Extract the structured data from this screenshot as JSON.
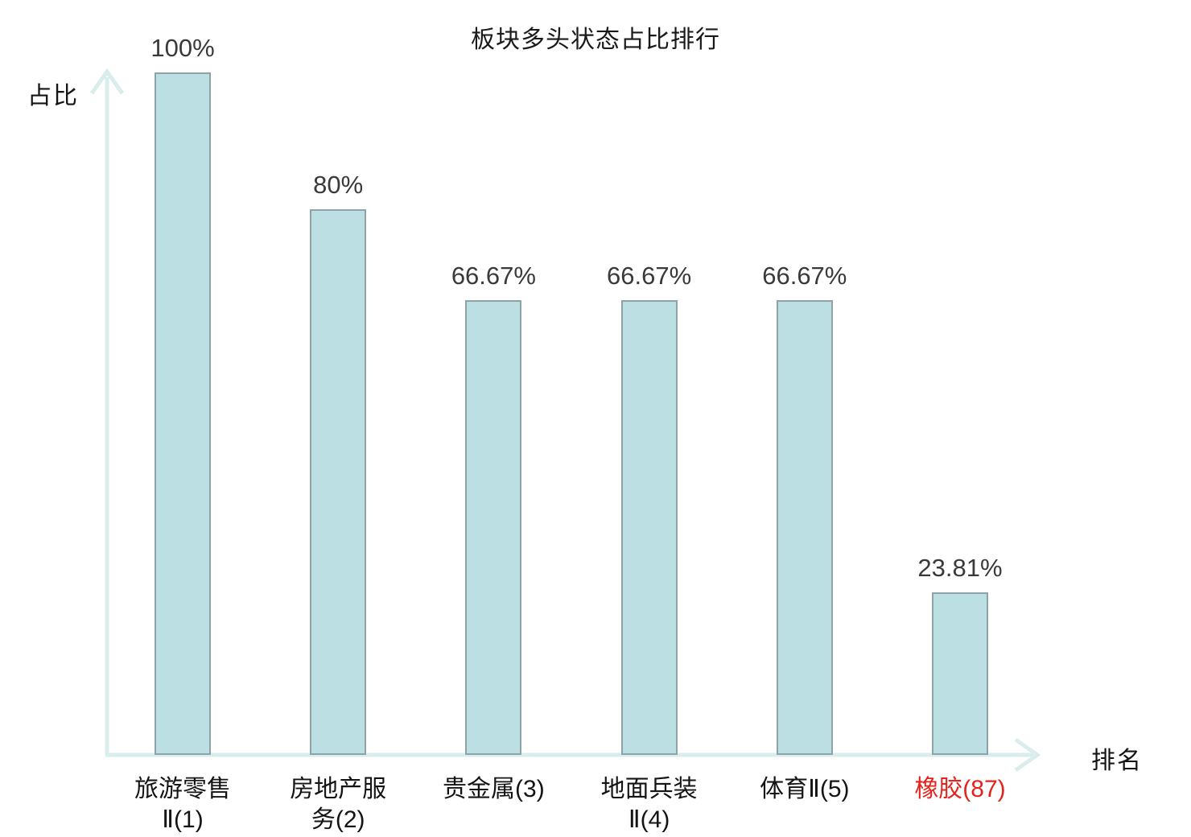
{
  "chart_data": {
    "type": "bar",
    "title": "板块多头状态占比排行",
    "xlabel": "排名",
    "ylabel": "占比",
    "ylim": [
      0,
      100
    ],
    "grid": false,
    "legend": "none",
    "categories": [
      "旅游零售Ⅱ(1)",
      "房地产服务(2)",
      "贵金属(3)",
      "地面兵装Ⅱ(4)",
      "体育Ⅱ(5)",
      "橡胶(87)"
    ],
    "category_lines": [
      "旅游零售\nⅡ(1)",
      "房地产服\n务(2)",
      "贵金属(3)",
      "地面兵装\nⅡ(4)",
      "体育Ⅱ(5)",
      "橡胶(87)"
    ],
    "values": [
      100,
      80,
      66.67,
      66.67,
      66.67,
      23.81
    ],
    "value_labels": [
      "100%",
      "80%",
      "66.67%",
      "66.67%",
      "66.67%",
      "23.81%"
    ],
    "highlight_index": 5,
    "colors": {
      "bar_fill": "#bcdfe3",
      "bar_border": "#8da3a7",
      "axis": "#d9edec",
      "value_label": "#3a3a3a",
      "category_label": "#141414",
      "highlight_label": "#e5231d",
      "title": "#1a1a1a"
    }
  }
}
